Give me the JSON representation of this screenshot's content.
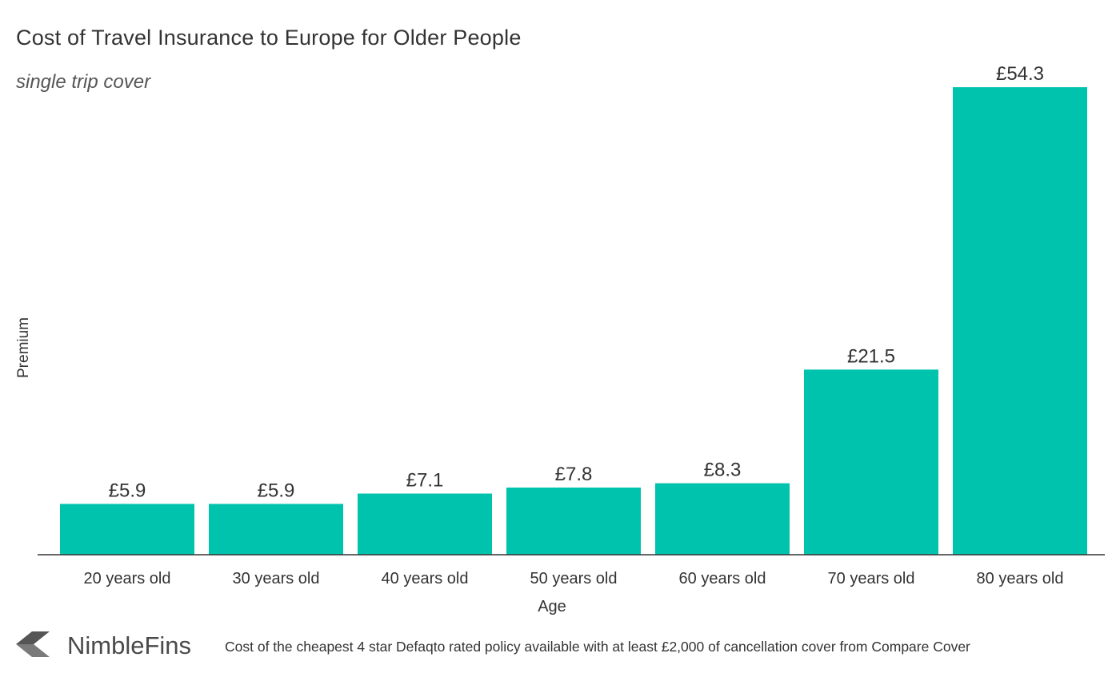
{
  "chart_data": {
    "type": "bar",
    "title": "Cost of Travel Insurance to Europe for Older People",
    "subtitle": "single trip cover",
    "xlabel": "Age",
    "ylabel": "Premium",
    "categories": [
      "20 years old",
      "30 years old",
      "40 years old",
      "50 years old",
      "60 years old",
      "70 years old",
      "80 years old"
    ],
    "values": [
      5.9,
      5.9,
      7.1,
      7.8,
      8.3,
      21.5,
      54.3
    ],
    "data_labels": [
      "£5.9",
      "£5.9",
      "£7.1",
      "£7.8",
      "£8.3",
      "£21.5",
      "£54.3"
    ],
    "ylim": [
      0,
      57
    ],
    "grid": false,
    "bar_color": "#00c3ad"
  },
  "footer": {
    "brand": "NimbleFins",
    "logo_icon": "nimblefins-chevron-logo",
    "source": "Cost of the cheapest 4 star Defaqto rated policy available with at least £2,000 of cancellation cover from Compare Cover"
  },
  "colors": {
    "bar": "#00c3ad",
    "text": "#333333",
    "axis": "#333333"
  }
}
